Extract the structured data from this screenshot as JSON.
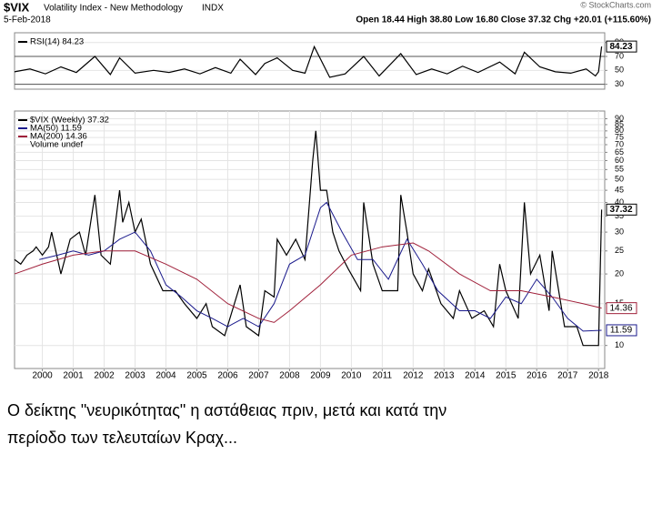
{
  "header": {
    "symbol": "$VIX",
    "name": "Volatility Index - New Methodology",
    "exchange": "INDX",
    "date": "5-Feb-2018",
    "quote": "Open 18.44 High 38.80 Low 16.80 Close 37.32 Chg +20.01 (+115.60%)",
    "credit": "© StockCharts.com"
  },
  "chart_data": [
    {
      "type": "line",
      "xlim": [
        1999.1,
        2018.2
      ],
      "ylim": [
        23,
        104
      ],
      "yticks": [
        30,
        50,
        70,
        90
      ],
      "ref_lines": [
        30,
        70
      ],
      "grid": true,
      "series": [
        {
          "name": "RSI(14) 84.23",
          "color": "#000000",
          "x": [
            1999.1,
            1999.6,
            2000.1,
            2000.6,
            2001.1,
            2001.7,
            2002.2,
            2002.5,
            2003.0,
            2003.6,
            2004.1,
            2004.6,
            2005.1,
            2005.6,
            2006.1,
            2006.4,
            2006.9,
            2007.2,
            2007.6,
            2008.1,
            2008.5,
            2008.8,
            2009.3,
            2009.8,
            2010.4,
            2010.9,
            2011.6,
            2012.1,
            2012.6,
            2013.1,
            2013.6,
            2014.1,
            2014.8,
            2015.3,
            2015.6,
            2016.1,
            2016.6,
            2017.1,
            2017.6,
            2017.9,
            2018.0,
            2018.1
          ],
          "values": [
            48,
            52,
            45,
            55,
            47,
            70,
            44,
            68,
            46,
            50,
            47,
            52,
            45,
            54,
            46,
            66,
            44,
            60,
            68,
            50,
            46,
            84,
            40,
            45,
            70,
            42,
            74,
            44,
            52,
            45,
            56,
            47,
            62,
            45,
            76,
            55,
            48,
            46,
            52,
            42,
            48,
            84.23
          ]
        }
      ]
    },
    {
      "type": "line",
      "log_scale": true,
      "xlim": [
        1999.1,
        2018.2
      ],
      "ylim": [
        8,
        97
      ],
      "yticks": [
        10,
        15,
        20,
        25,
        30,
        35,
        40,
        45,
        50,
        55,
        60,
        65,
        70,
        75,
        80,
        85,
        90
      ],
      "xticks": [
        2000,
        2001,
        2002,
        2003,
        2004,
        2005,
        2006,
        2007,
        2008,
        2009,
        2010,
        2011,
        2012,
        2013,
        2014,
        2015,
        2016,
        2017,
        2018
      ],
      "grid": true,
      "volume_label": "Volume undef",
      "series": [
        {
          "name": "$VIX (Weekly) 37.32",
          "color": "#000000",
          "x": [
            1999.1,
            1999.3,
            1999.5,
            1999.7,
            1999.8,
            2000.0,
            2000.2,
            2000.3,
            2000.6,
            2000.9,
            2001.2,
            2001.4,
            2001.7,
            2001.9,
            2002.2,
            2002.5,
            2002.6,
            2002.8,
            2003.0,
            2003.2,
            2003.5,
            2003.9,
            2004.3,
            2004.6,
            2005.0,
            2005.3,
            2005.5,
            2005.9,
            2006.4,
            2006.6,
            2007.0,
            2007.2,
            2007.5,
            2007.6,
            2007.9,
            2008.2,
            2008.5,
            2008.75,
            2008.85,
            2009.0,
            2009.2,
            2009.4,
            2009.6,
            2009.9,
            2010.3,
            2010.4,
            2010.7,
            2011.0,
            2011.5,
            2011.6,
            2011.8,
            2012.0,
            2012.3,
            2012.5,
            2012.9,
            2013.3,
            2013.5,
            2013.9,
            2014.3,
            2014.6,
            2014.8,
            2015.0,
            2015.4,
            2015.6,
            2015.8,
            2016.1,
            2016.4,
            2016.5,
            2016.9,
            2017.3,
            2017.5,
            2017.9,
            2018.0,
            2018.1
          ],
          "values": [
            23,
            22,
            24,
            25,
            26,
            24,
            26,
            30,
            20,
            28,
            30,
            24,
            43,
            24,
            22,
            45,
            33,
            40,
            30,
            34,
            22,
            17,
            17,
            15,
            13,
            15,
            12,
            11,
            18,
            12,
            11,
            17,
            16,
            28,
            24,
            28,
            23,
            60,
            80,
            45,
            45,
            30,
            25,
            21,
            17,
            40,
            22,
            17,
            17,
            43,
            30,
            20,
            17,
            21,
            15,
            13,
            17,
            13,
            14,
            12,
            22,
            17,
            13,
            40,
            20,
            24,
            14,
            25,
            12,
            12,
            10,
            10,
            10,
            37.32
          ]
        },
        {
          "name": "MA(50) 11.59",
          "color": "#1a1a8c",
          "x": [
            1999.9,
            2000.5,
            2001.0,
            2001.5,
            2002.0,
            2002.5,
            2003.0,
            2003.5,
            2004.0,
            2004.5,
            2005.0,
            2005.5,
            2006.0,
            2006.5,
            2007.0,
            2007.5,
            2008.0,
            2008.5,
            2009.0,
            2009.2,
            2009.7,
            2010.2,
            2010.7,
            2011.2,
            2011.8,
            2012.3,
            2012.8,
            2013.5,
            2014.0,
            2014.5,
            2015.0,
            2015.5,
            2016.0,
            2016.5,
            2017.0,
            2017.5,
            2018.1
          ],
          "values": [
            23,
            24,
            25,
            24,
            25,
            28,
            30,
            25,
            18,
            16,
            14,
            13,
            12,
            13,
            12,
            15,
            22,
            24,
            38,
            40,
            30,
            23,
            23,
            19,
            28,
            22,
            17,
            14,
            14,
            13,
            16,
            15,
            19,
            16,
            13,
            11.5,
            11.59
          ]
        },
        {
          "name": "MA(200) 14.36",
          "color": "#a0203a",
          "x": [
            1999.1,
            2000.0,
            2001.0,
            2002.0,
            2003.0,
            2004.0,
            2005.0,
            2006.0,
            2007.0,
            2007.5,
            2008.0,
            2009.0,
            2010.0,
            2011.0,
            2012.0,
            2012.5,
            2013.5,
            2014.5,
            2015.5,
            2016.5,
            2017.5,
            2018.1
          ],
          "values": [
            20,
            22,
            24,
            25,
            25,
            22,
            19,
            15,
            13,
            12.5,
            14,
            18,
            24,
            26,
            27,
            25,
            20,
            17,
            17,
            16,
            15,
            14.36
          ]
        }
      ]
    }
  ],
  "caption": [
    "Ο δείκτης \"νευρικότητας\" η αστάθειας πριν, μετά  και κατά την",
    "περίοδο των τελευταίων Κραχ..."
  ]
}
